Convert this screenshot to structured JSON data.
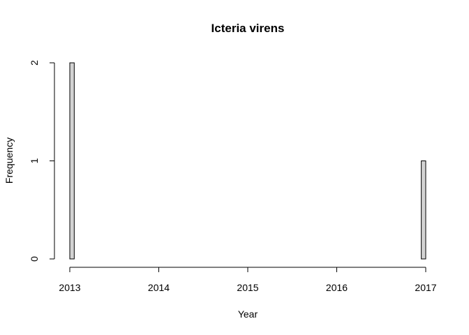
{
  "chart_data": {
    "type": "bar",
    "title": "Icteria virens",
    "xlabel": "Year",
    "ylabel": "Frequency",
    "xlim": [
      2013,
      2017
    ],
    "ylim": [
      0,
      2
    ],
    "bin_width": 0.05,
    "x_ticks": [
      "2013",
      "2014",
      "2015",
      "2016",
      "2017"
    ],
    "y_ticks": [
      "0",
      "1",
      "2"
    ],
    "bins": [
      {
        "start": 2013.0,
        "end": 2013.05,
        "count": 2
      },
      {
        "start": 2016.95,
        "end": 2017.0,
        "count": 1
      }
    ],
    "bar_color": "#d3d3d3",
    "grid": false
  }
}
